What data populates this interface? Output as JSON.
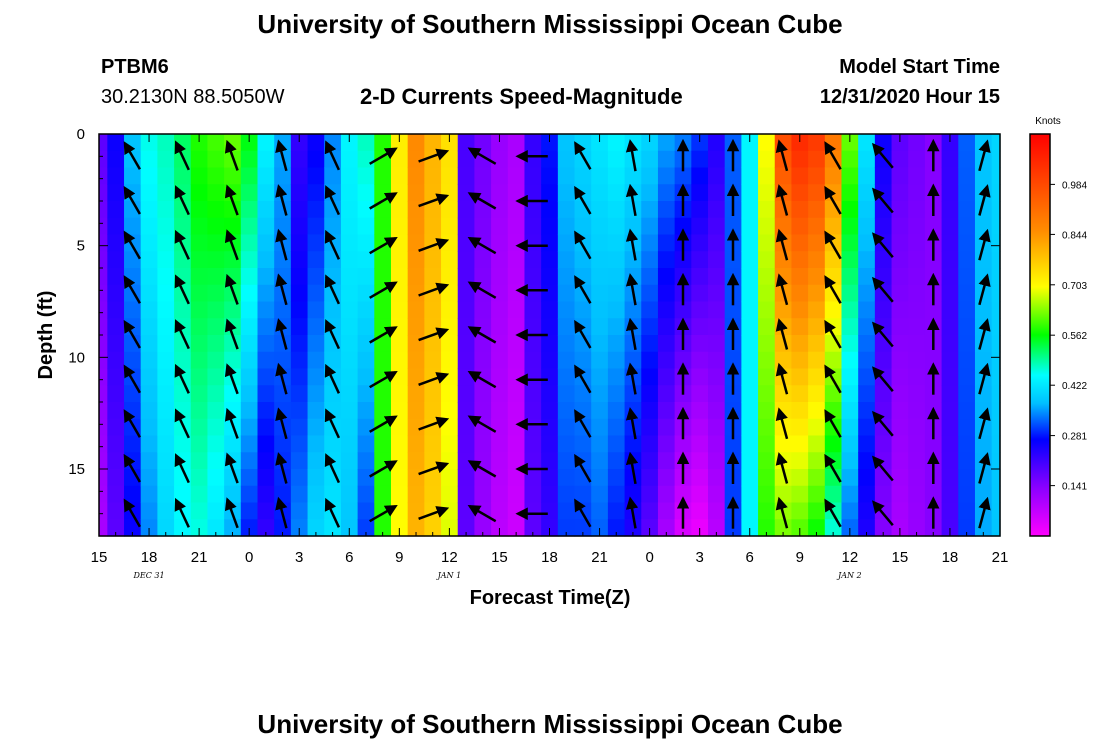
{
  "header": {
    "title": "University of Southern Mississippi Ocean Cube",
    "station_id": "PTBM6",
    "coordinates": "30.2130N 88.5050W",
    "plot_title": "2-D Currents Speed-Magnitude",
    "model_start_label": "Model Start Time",
    "model_start_value": "12/31/2020 Hour 15"
  },
  "footer": {
    "title": "University of Southern Mississippi Ocean Cube"
  },
  "chart_data": {
    "type": "heatmap",
    "title": "2-D Currents Speed-Magnitude",
    "xlabel": "Forecast Time(Z)",
    "ylabel": "Depth (ft)",
    "x_tick_labels": [
      "15",
      "18",
      "21",
      "0",
      "3",
      "6",
      "9",
      "12",
      "15",
      "18",
      "21",
      "0",
      "3",
      "6",
      "9",
      "12",
      "15",
      "18",
      "21"
    ],
    "x_date_labels": [
      {
        "label": "DEC 31",
        "tick_index": 1
      },
      {
        "label": "JAN 1",
        "tick_index": 7
      },
      {
        "label": "JAN 2",
        "tick_index": 15
      }
    ],
    "y_ticks": [
      0,
      5,
      10,
      15
    ],
    "ylim": [
      0,
      18
    ],
    "y_inverted": true,
    "colorbar": {
      "unit": "Knots",
      "ticks": [
        "0.984",
        "0.844",
        "0.703",
        "0.562",
        "0.422",
        "0.281",
        "0.141"
      ],
      "range": [
        0,
        1.125
      ],
      "colors": [
        "#ff00ff",
        "#8b00ff",
        "#0000ff",
        "#00bfff",
        "#00ffff",
        "#00ff00",
        "#ffff00",
        "#ff8c00",
        "#ff0000"
      ]
    },
    "forecast_hours": [
      0,
      1,
      2,
      3,
      4,
      5,
      6,
      7,
      8,
      9,
      10,
      11,
      12,
      13,
      14,
      15,
      16,
      17,
      18,
      19,
      20,
      21,
      22,
      23,
      24,
      25,
      26,
      27,
      28,
      29,
      30,
      31,
      32,
      33,
      34,
      35,
      36,
      37,
      38,
      39,
      40,
      41,
      42,
      43,
      44,
      45,
      46,
      47,
      48,
      49,
      50,
      51,
      52,
      53,
      54
    ],
    "surface_speed_knots": [
      0.18,
      0.26,
      0.38,
      0.46,
      0.48,
      0.52,
      0.58,
      0.6,
      0.62,
      0.56,
      0.44,
      0.36,
      0.22,
      0.26,
      0.34,
      0.44,
      0.48,
      0.58,
      0.72,
      0.86,
      0.8,
      0.74,
      0.2,
      0.16,
      0.12,
      0.1,
      0.22,
      0.28,
      0.38,
      0.4,
      0.42,
      0.44,
      0.42,
      0.4,
      0.36,
      0.34,
      0.3,
      0.24,
      0.32,
      0.44,
      0.7,
      0.98,
      1.05,
      1.02,
      0.9,
      0.62,
      0.42,
      0.26,
      0.18,
      0.16,
      0.14,
      0.22,
      0.32,
      0.38,
      0.4
    ],
    "bottom_speed_knots": [
      0.1,
      0.18,
      0.26,
      0.34,
      0.4,
      0.44,
      0.46,
      0.42,
      0.36,
      0.28,
      0.22,
      0.28,
      0.34,
      0.4,
      0.42,
      0.38,
      0.3,
      0.58,
      0.7,
      0.8,
      0.76,
      0.68,
      0.18,
      0.12,
      0.08,
      0.06,
      0.18,
      0.22,
      0.3,
      0.3,
      0.32,
      0.28,
      0.24,
      0.18,
      0.1,
      0.04,
      0.02,
      0.08,
      0.3,
      0.44,
      0.58,
      0.62,
      0.6,
      0.56,
      0.46,
      0.32,
      0.24,
      0.14,
      0.1,
      0.12,
      0.14,
      0.2,
      0.3,
      0.36,
      0.38
    ],
    "vector_depths_ft": [
      1,
      3,
      5,
      7,
      9,
      11,
      13,
      15,
      17
    ],
    "vector_time_hours": [
      2,
      5,
      8,
      11,
      14,
      17,
      20,
      23,
      26,
      29,
      32,
      35,
      38,
      41,
      44,
      47,
      50,
      53
    ],
    "vector_direction_deg": [
      330,
      335,
      340,
      345,
      335,
      60,
      70,
      300,
      270,
      330,
      350,
      0,
      0,
      345,
      330,
      320,
      0,
      15
    ]
  }
}
